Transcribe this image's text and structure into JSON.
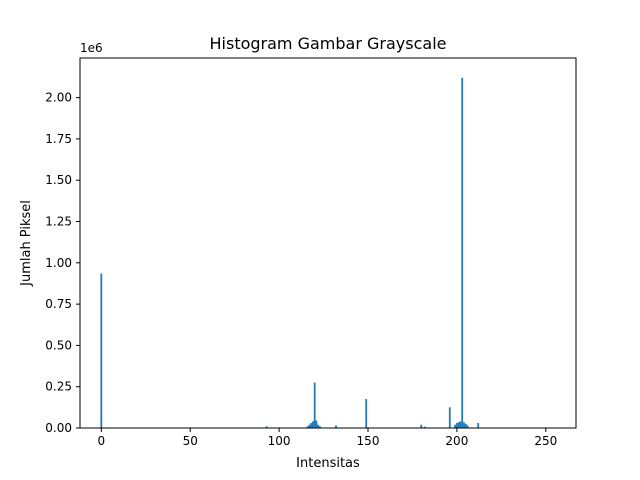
{
  "chart_data": {
    "type": "bar",
    "title": "Histogram Gambar Grayscale",
    "xlabel": "Intensitas",
    "ylabel": "Jumlah Piksel",
    "y_offset_text": "1e6",
    "xlim": [
      -12,
      267
    ],
    "ylim": [
      0,
      2.24
    ],
    "x_ticks": [
      0,
      50,
      100,
      150,
      200,
      250
    ],
    "y_ticks": [
      0.0,
      0.25,
      0.5,
      0.75,
      1.0,
      1.25,
      1.5,
      1.75,
      2.0
    ],
    "y_tick_labels": [
      "0.00",
      "0.25",
      "0.50",
      "0.75",
      "1.00",
      "1.25",
      "1.50",
      "1.75",
      "2.00"
    ],
    "bar_color": "#1f77b4",
    "grid": false,
    "series": [
      {
        "x": [
          0,
          93,
          116,
          117,
          118,
          119,
          120,
          121,
          122,
          123,
          132,
          149,
          180,
          182,
          196,
          199,
          200,
          201,
          202,
          203,
          204,
          205,
          206,
          212
        ],
        "values": [
          0.935,
          0.01,
          0.01,
          0.02,
          0.03,
          0.04,
          0.275,
          0.045,
          0.02,
          0.01,
          0.015,
          0.175,
          0.02,
          0.008,
          0.125,
          0.02,
          0.03,
          0.035,
          0.04,
          2.12,
          0.035,
          0.025,
          0.015,
          0.03
        ]
      }
    ]
  }
}
